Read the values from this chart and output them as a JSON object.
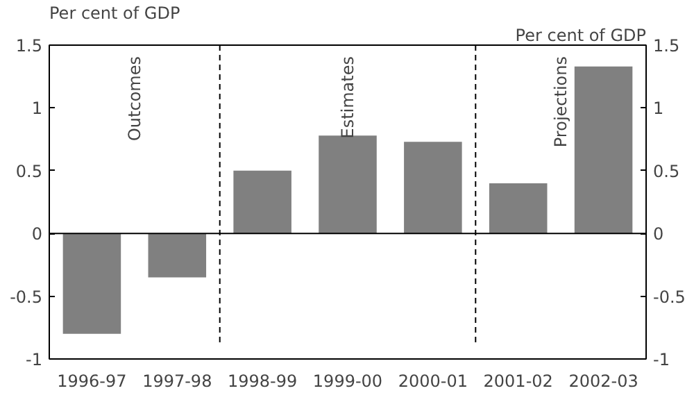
{
  "chart_data": {
    "type": "bar",
    "categories": [
      "1996-97",
      "1997-98",
      "1998-99",
      "1999-00",
      "2000-01",
      "2001-02",
      "2002-03"
    ],
    "values": [
      -0.8,
      -0.35,
      0.5,
      0.78,
      0.73,
      0.4,
      1.33
    ],
    "color": "#808080",
    "ylabel": "Per cent of GDP",
    "y2label": "Per cent of GDP",
    "ylim": [
      -1,
      1.5
    ],
    "yticks": [
      -1,
      -0.5,
      0,
      0.5,
      1,
      1.5
    ],
    "y2lim": [
      -1,
      1.5
    ],
    "y2ticks": [
      -1,
      -0.5,
      0,
      0.5,
      1,
      1.5
    ],
    "annotations": [
      "Outcomes",
      "Estimates",
      "Projections"
    ],
    "grid": false
  }
}
